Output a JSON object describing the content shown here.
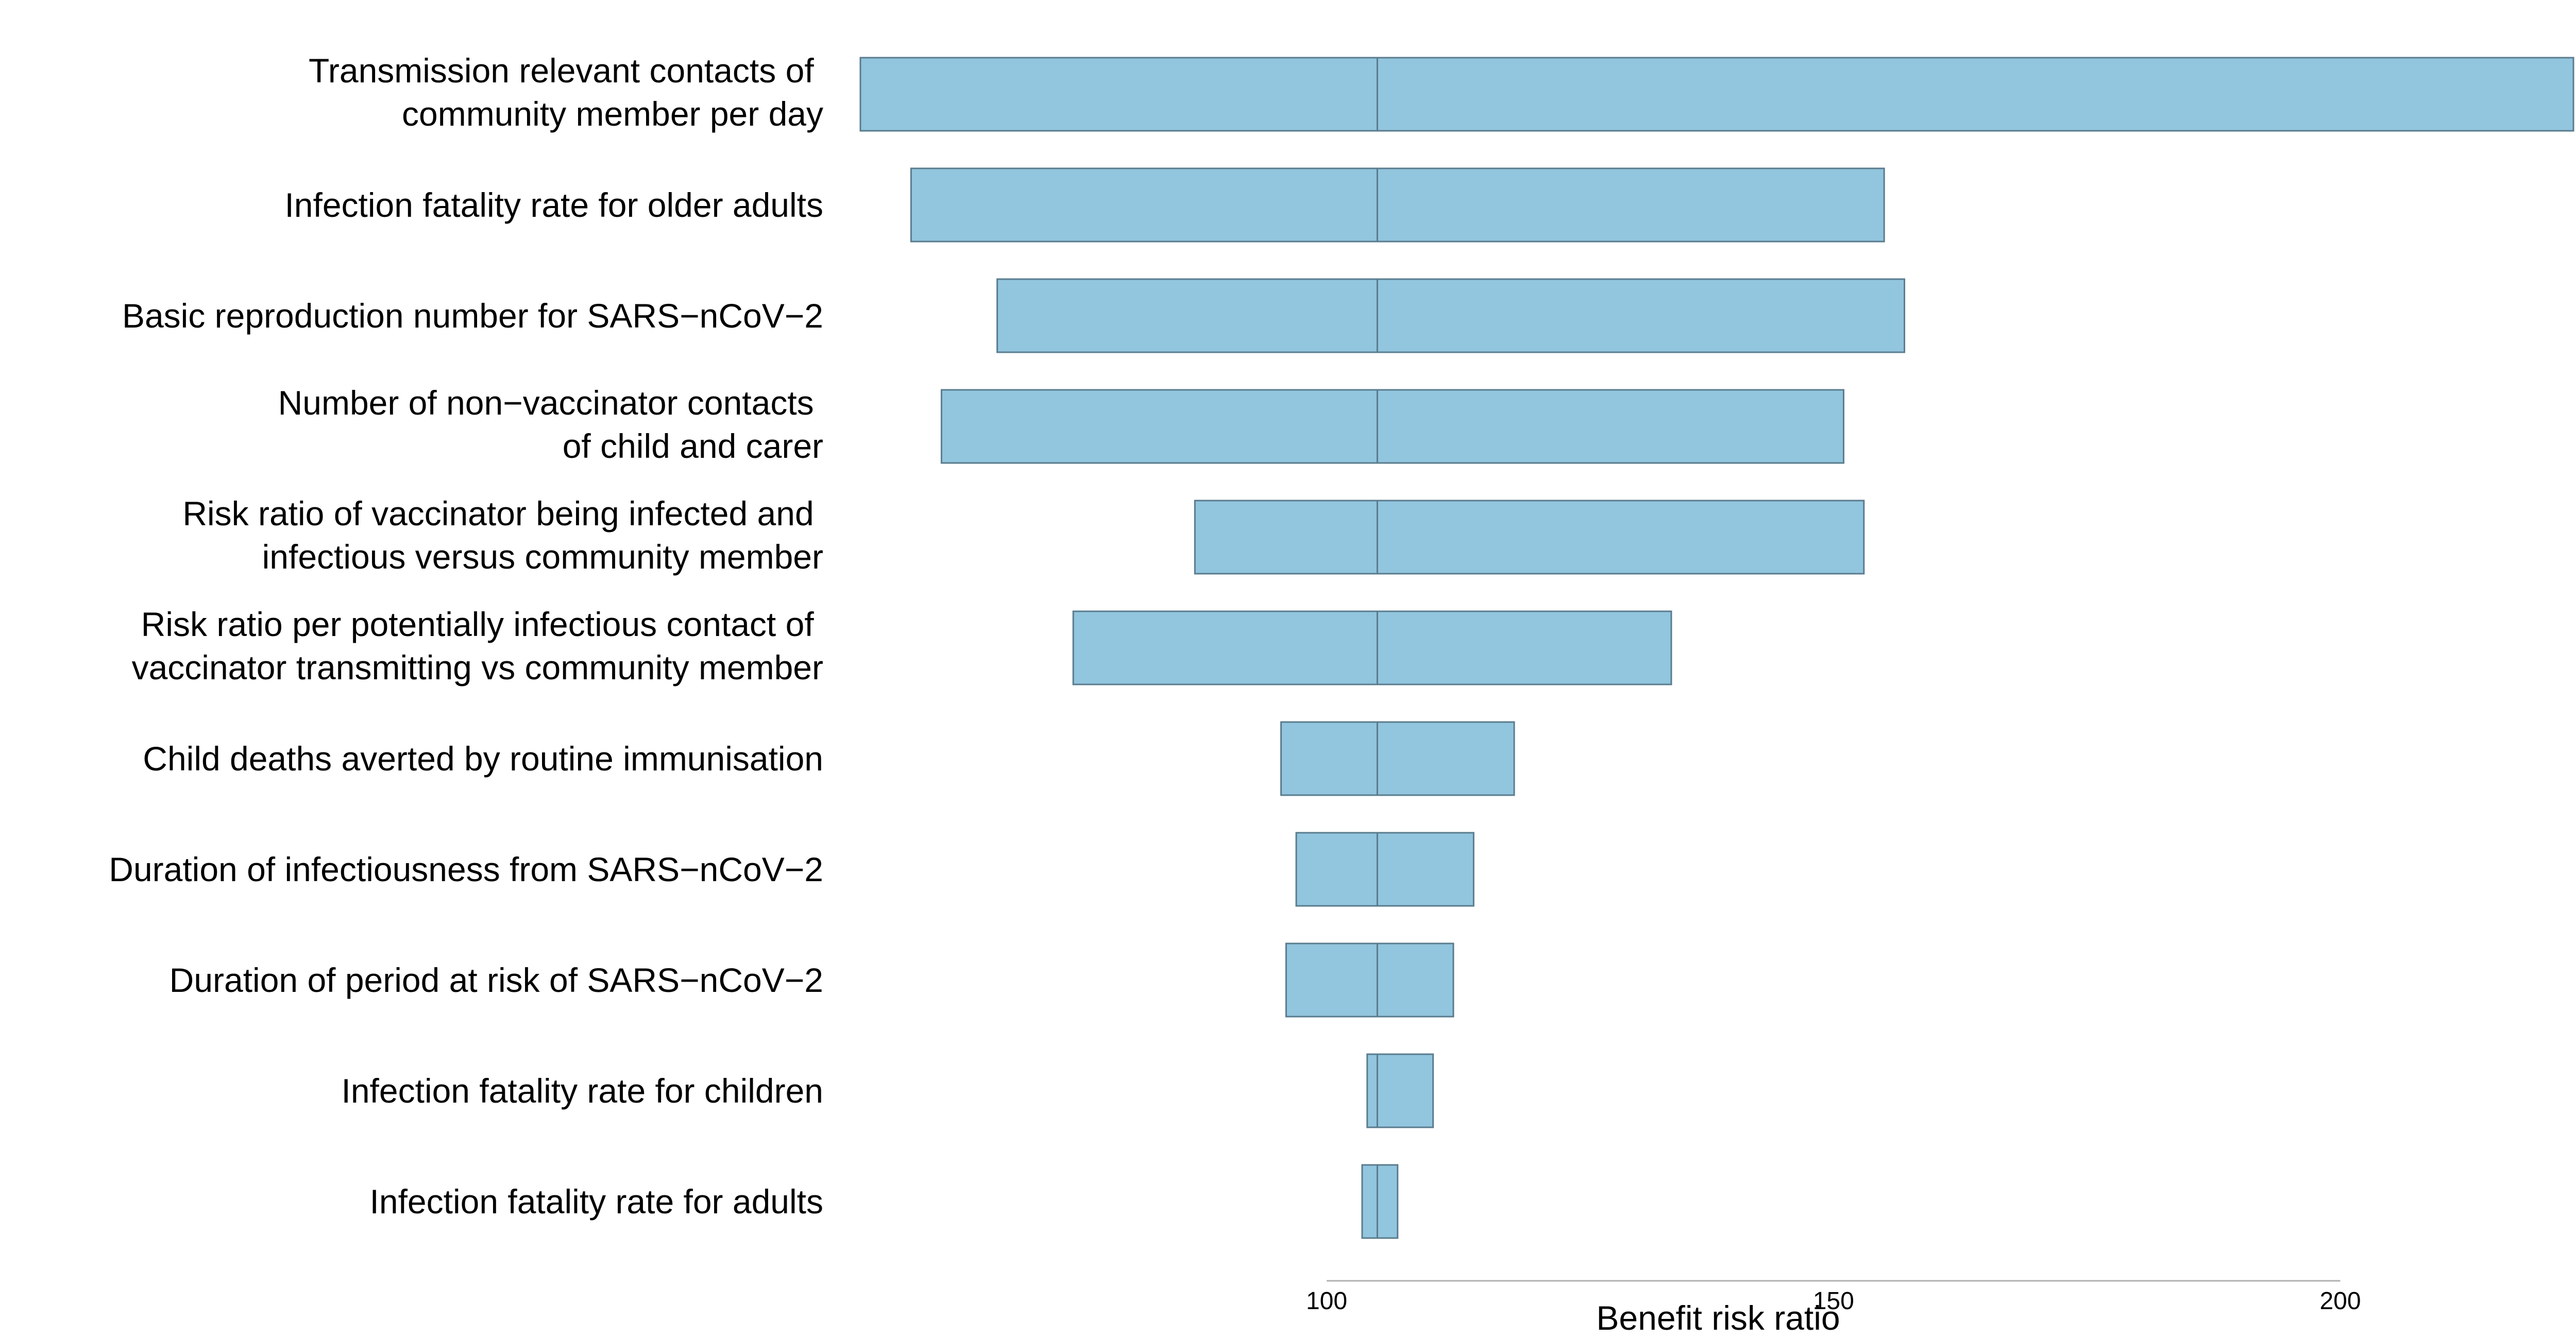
{
  "chart_data": {
    "type": "bar",
    "subtype": "tornado",
    "title": "",
    "xlabel": "Benefit risk ratio",
    "ylabel": "",
    "baseline": 105,
    "xlim": [
      54,
      223
    ],
    "xticks": [
      100,
      150,
      200
    ],
    "grid": false,
    "legend": "none",
    "bar_color": "#92c5de",
    "bar_edge_color": "#5a7c8e",
    "categories": [
      [
        "Transmission relevant contacts of ",
        "community member per day"
      ],
      [
        "Infection fatality rate for older adults"
      ],
      [
        "Basic reproduction number for SARS−nCoV−2"
      ],
      [
        "Number of non−vaccinator contacts ",
        "of child and carer"
      ],
      [
        "Risk ratio of vaccinator being infected and ",
        "infectious versus community member"
      ],
      [
        "Risk ratio per potentially infectious contact of ",
        "vaccinator transmitting vs community member"
      ],
      [
        "Child deaths averted by routine immunisation"
      ],
      [
        "Duration of infectiousness from SARS−nCoV−2"
      ],
      [
        "Duration of period at risk of SARS−nCoV−2"
      ],
      [
        "Infection fatality rate for children"
      ],
      [
        "Infection fatality rate for adults"
      ]
    ],
    "low": [
      54,
      59,
      67.5,
      62,
      87,
      75,
      95.5,
      97,
      96,
      104,
      103.5
    ],
    "high": [
      223,
      155,
      157,
      151,
      153,
      134,
      118.5,
      114.5,
      112.5,
      110.5,
      107
    ]
  }
}
